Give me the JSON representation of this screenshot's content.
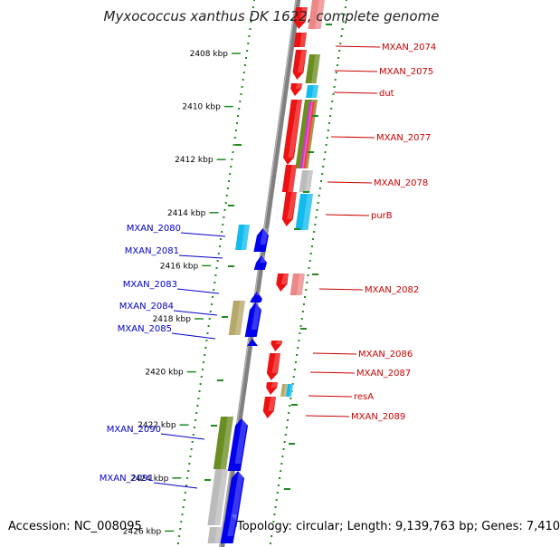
{
  "title": "Myxococcus xanthus DK 1622, complete genome",
  "footer": {
    "accession": "Accession: NC_008095",
    "stats": "Topology: circular; Length: 9,139,763 bp; Genes: 7,410"
  },
  "colors": {
    "red": "#ee1111",
    "blue": "#0000ee",
    "cyan": "#11bbee",
    "olive": "#6b8e23",
    "khaki": "#b5a86a",
    "pink": "#ee8888",
    "gray": "#bbbbbb",
    "green_dots": "#228822",
    "label_right": "#cc0000",
    "label_left": "#0000cc",
    "axis": "#808080"
  },
  "scale": {
    "unit": "kbp",
    "ticks": [
      "2408 kbp",
      "2410 kbp",
      "2412 kbp",
      "2414 kbp",
      "2416 kbp",
      "2418 kbp",
      "2420 kbp",
      "2422 kbp",
      "2424 kbp",
      "2426 kbp"
    ]
  },
  "forward_labels": [
    "MXAN_2074",
    "MXAN_2075",
    "dut",
    "MXAN_2077",
    "MXAN_2078",
    "purB",
    "MXAN_2082",
    "MXAN_2086",
    "MXAN_2087",
    "resA",
    "MXAN_2089"
  ],
  "reverse_labels": [
    "MXAN_2080",
    "MXAN_2081",
    "MXAN_2083",
    "MXAN_2084",
    "MXAN_2085",
    "MXAN_2090",
    "MXAN_2091"
  ]
}
